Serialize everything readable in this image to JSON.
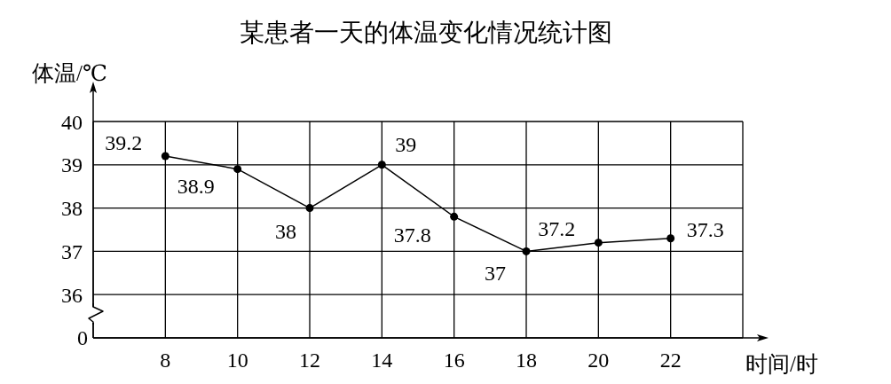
{
  "chart_data": {
    "type": "line",
    "title": "某患者一天的体温变化情况统计图",
    "xlabel": "时间/时",
    "ylabel": "体温/℃",
    "x": [
      8,
      10,
      12,
      14,
      16,
      18,
      20,
      22
    ],
    "values": [
      39.2,
      38.9,
      38,
      39,
      37.8,
      37,
      37.2,
      37.3
    ],
    "color": "#000000",
    "xlim": [
      6,
      24
    ],
    "xticks": [
      8,
      10,
      12,
      14,
      16,
      18,
      20,
      22,
      {
        "value": 24,
        "label": null
      }
    ],
    "ylim": [
      35,
      40
    ],
    "yticks": [
      36,
      37,
      38,
      39,
      40
    ],
    "annotations": [
      "0"
    ],
    "grid": true,
    "marker": "circle",
    "data_labels": true
  }
}
